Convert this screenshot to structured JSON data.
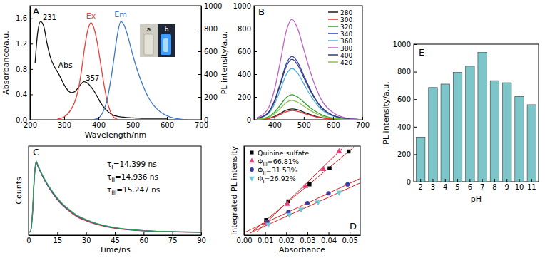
{
  "chart_data": [
    {
      "type": "line",
      "title": "A",
      "xlabel": "Wavelength/nm",
      "ylabel": "Absorbance/a.u.",
      "y2label": "PL intensity/a.u.",
      "xlim": [
        200,
        700
      ],
      "xticks": [
        200,
        300,
        400,
        500,
        600,
        700
      ],
      "ylim": [
        0,
        1.8
      ],
      "yticks": [
        {
          "value": 0,
          "label": "0.0"
        },
        0.4,
        0.8,
        1.2,
        1.6
      ],
      "y2lim": [
        0,
        1000
      ],
      "y2ticks": [
        0,
        200,
        400,
        600,
        800,
        1000
      ],
      "series": [
        {
          "name": "Abs",
          "color": "#111111",
          "x": [
            215,
            222,
            231,
            240,
            250,
            260,
            270,
            280,
            290,
            300,
            310,
            320,
            330,
            340,
            350,
            357,
            365,
            375,
            385,
            395,
            405,
            420,
            440,
            460,
            500,
            550,
            600
          ],
          "values": [
            0.9,
            1.35,
            1.55,
            1.48,
            1.2,
            0.98,
            0.85,
            0.76,
            0.66,
            0.55,
            0.47,
            0.43,
            0.44,
            0.5,
            0.57,
            0.6,
            0.59,
            0.54,
            0.47,
            0.38,
            0.28,
            0.17,
            0.08,
            0.05,
            0.03,
            0.02,
            0.02
          ]
        },
        {
          "name": "Ex",
          "color": "#e8413c",
          "axis": "y2",
          "x": [
            280,
            300,
            320,
            330,
            340,
            350,
            360,
            370,
            378,
            385,
            395,
            405,
            415,
            425,
            435,
            445,
            455
          ],
          "values": [
            5,
            25,
            90,
            150,
            250,
            420,
            640,
            800,
            850,
            820,
            700,
            520,
            330,
            170,
            70,
            20,
            5
          ]
        },
        {
          "name": "Em",
          "color": "#3b78c8",
          "axis": "y2",
          "x": [
            385,
            400,
            415,
            425,
            435,
            445,
            455,
            465,
            475,
            485,
            500,
            515,
            530,
            545,
            560,
            580,
            600,
            620,
            640,
            660
          ],
          "values": [
            0,
            15,
            80,
            170,
            330,
            530,
            740,
            860,
            830,
            740,
            570,
            420,
            300,
            200,
            130,
            70,
            35,
            15,
            5,
            0
          ]
        }
      ],
      "annotations": [
        {
          "text": "231",
          "x": 231,
          "y": 1.55
        },
        {
          "text": "357",
          "x": 357,
          "y": 0.6
        }
      ],
      "inset_labels": [
        "a",
        "b"
      ]
    },
    {
      "type": "line",
      "title": "B",
      "xlim": [
        330,
        700
      ],
      "xticks": [
        400,
        500,
        600,
        700
      ],
      "ylim": [
        0,
        1000
      ],
      "yticks": [
        0,
        200,
        400,
        600,
        800,
        1000
      ],
      "legend": "top-right",
      "x": [
        340,
        360,
        380,
        400,
        420,
        440,
        460,
        480,
        500,
        520,
        540,
        560,
        580,
        600,
        620,
        640,
        660,
        680,
        700
      ],
      "series": [
        {
          "name": "280",
          "color": "#1a1a1a",
          "values": [
            2,
            5,
            11,
            29,
            55,
            84,
            95,
            86,
            67,
            48,
            31,
            19,
            11,
            7,
            4,
            2,
            1,
            0,
            0
          ]
        },
        {
          "name": "300",
          "color": "#e8322b",
          "values": [
            2,
            4,
            10,
            24,
            46,
            70,
            80,
            72,
            56,
            40,
            26,
            16,
            10,
            6,
            3,
            2,
            1,
            0,
            0
          ]
        },
        {
          "name": "320",
          "color": "#2ca02c",
          "values": [
            4,
            11,
            26,
            66,
            128,
            194,
            220,
            198,
            154,
            110,
            73,
            44,
            26,
            15,
            9,
            4,
            2,
            1,
            0
          ]
        },
        {
          "name": "340",
          "color": "#2b3fb8",
          "values": [
            11,
            28,
            67,
            167,
            322,
            488,
            555,
            500,
            389,
            278,
            183,
            111,
            67,
            39,
            22,
            11,
            6,
            3,
            0
          ]
        },
        {
          "name": "360",
          "color": "#4fb3d9",
          "values": [
            9,
            23,
            54,
            135,
            261,
            396,
            450,
            405,
            315,
            225,
            149,
            90,
            54,
            32,
            18,
            9,
            5,
            2,
            0
          ]
        },
        {
          "name": "380",
          "color": "#c25fc2",
          "values": [
            18,
            44,
            106,
            264,
            510,
            774,
            880,
            792,
            616,
            440,
            290,
            176,
            106,
            62,
            35,
            18,
            9,
            4,
            0
          ]
        },
        {
          "name": "400",
          "color": "#3a3a6e",
          "values": [
            11,
            27,
            64,
            159,
            307,
            466,
            530,
            477,
            371,
            265,
            175,
            106,
            64,
            37,
            21,
            11,
            5,
            3,
            0
          ]
        },
        {
          "name": "420",
          "color": "#8bc34a",
          "values": [
            3,
            9,
            20,
            51,
            99,
            150,
            170,
            153,
            119,
            85,
            56,
            34,
            20,
            12,
            7,
            3,
            2,
            1,
            0
          ]
        }
      ]
    },
    {
      "type": "line",
      "title": "C",
      "xlabel": "Time/ns",
      "ylabel": "Counts",
      "xlim": [
        0,
        90
      ],
      "xticks": [
        0,
        15,
        30,
        45,
        60,
        75,
        90
      ],
      "ylim": [
        -20,
        600
      ],
      "tick_labels": "x",
      "x": [
        0,
        1,
        2,
        3,
        4,
        5,
        6,
        8,
        10,
        12,
        15,
        18,
        21,
        25,
        30,
        35,
        40,
        45,
        50,
        55,
        60,
        70,
        80,
        90
      ],
      "series": [
        {
          "color": "#e03030",
          "values": [
            0,
            5,
            120,
            380,
            490,
            457,
            427,
            372,
            324,
            282,
            228,
            184,
            150,
            111,
            80,
            57,
            40,
            28,
            20,
            14,
            10,
            5,
            2,
            1
          ]
        },
        {
          "color": "#3050c0",
          "values": [
            0,
            4,
            110,
            370,
            485,
            455,
            426,
            373,
            326,
            286,
            233,
            190,
            156,
            117,
            86,
            61,
            44,
            31,
            22,
            16,
            11,
            5,
            3,
            1
          ]
        },
        {
          "color": "#30a050",
          "values": [
            0,
            6,
            130,
            390,
            495,
            462,
            434,
            380,
            333,
            293,
            239,
            195,
            161,
            121,
            89,
            64,
            46,
            33,
            24,
            17,
            12,
            6,
            3,
            1
          ]
        }
      ],
      "annotations": [
        "τI=14.399 ns",
        "τII=14.936 ns",
        "τIII=15.247 ns"
      ]
    },
    {
      "type": "scatter",
      "title": "D",
      "xlabel": "Absorbance",
      "ylabel": "Integrated PL intensity",
      "xlim": [
        0,
        0.055
      ],
      "xticks": [
        {
          "value": 0,
          "label": "0.00"
        },
        0.01,
        0.02,
        0.03,
        0.04,
        0.05
      ],
      "ylim": [
        0,
        100
      ],
      "tick_labels": "x",
      "legend": "top-left",
      "series": [
        {
          "name": "Quinine sulfate",
          "color": "#000000",
          "marker": "square",
          "x": [
            0.0105,
            0.021,
            0.031,
            0.0405,
            0.0495
          ],
          "values": [
            17,
            38,
            57,
            75,
            94
          ],
          "fit_x": [
            0.003,
            0.052
          ],
          "fit_y": [
            2.2,
            98.9
          ]
        },
        {
          "name": "ΦIII=66.81%",
          "color": "#e8407a",
          "marker": "triangle-up",
          "x": [
            0.0105,
            0.0205,
            0.029,
            0.0375,
            0.045
          ],
          "values": [
            14,
            35,
            55,
            74,
            94
          ],
          "fit_x": [
            0.006,
            0.047
          ],
          "fit_y": [
            3.6,
            98.7
          ]
        },
        {
          "name": "ΦII=31.53%",
          "color": "#3a3aa0",
          "marker": "circle",
          "x": [
            0.011,
            0.021,
            0.03,
            0.04,
            0.049
          ],
          "values": [
            15,
            26,
            36,
            47,
            57
          ],
          "fit_x": [
            0,
            0.055
          ],
          "fit_y": [
            2.8,
            63.7
          ]
        },
        {
          "name": "ΦI=26.92%",
          "color": "#6ec8d8",
          "marker": "triangle-down",
          "x": [
            0.0115,
            0.0215,
            0.027,
            0.035,
            0.045
          ],
          "values": [
            12,
            23,
            29,
            37,
            48
          ],
          "fit_x": [
            0.003,
            0.055
          ],
          "fit_y": [
            2.8,
            58.7
          ]
        }
      ]
    },
    {
      "type": "bar",
      "title": "E",
      "xlabel": "pH",
      "ylabel": "PL intensity/a.u.",
      "categories": [
        "2",
        "3",
        "4",
        "5",
        "6",
        "7",
        "8",
        "9",
        "10",
        "11"
      ],
      "values": [
        325,
        685,
        710,
        795,
        840,
        940,
        735,
        720,
        620,
        560
      ],
      "color": "#7cc5c8",
      "ylim": [
        0,
        1000
      ],
      "yticks": [
        0,
        200,
        400,
        600,
        800,
        1000
      ]
    }
  ]
}
